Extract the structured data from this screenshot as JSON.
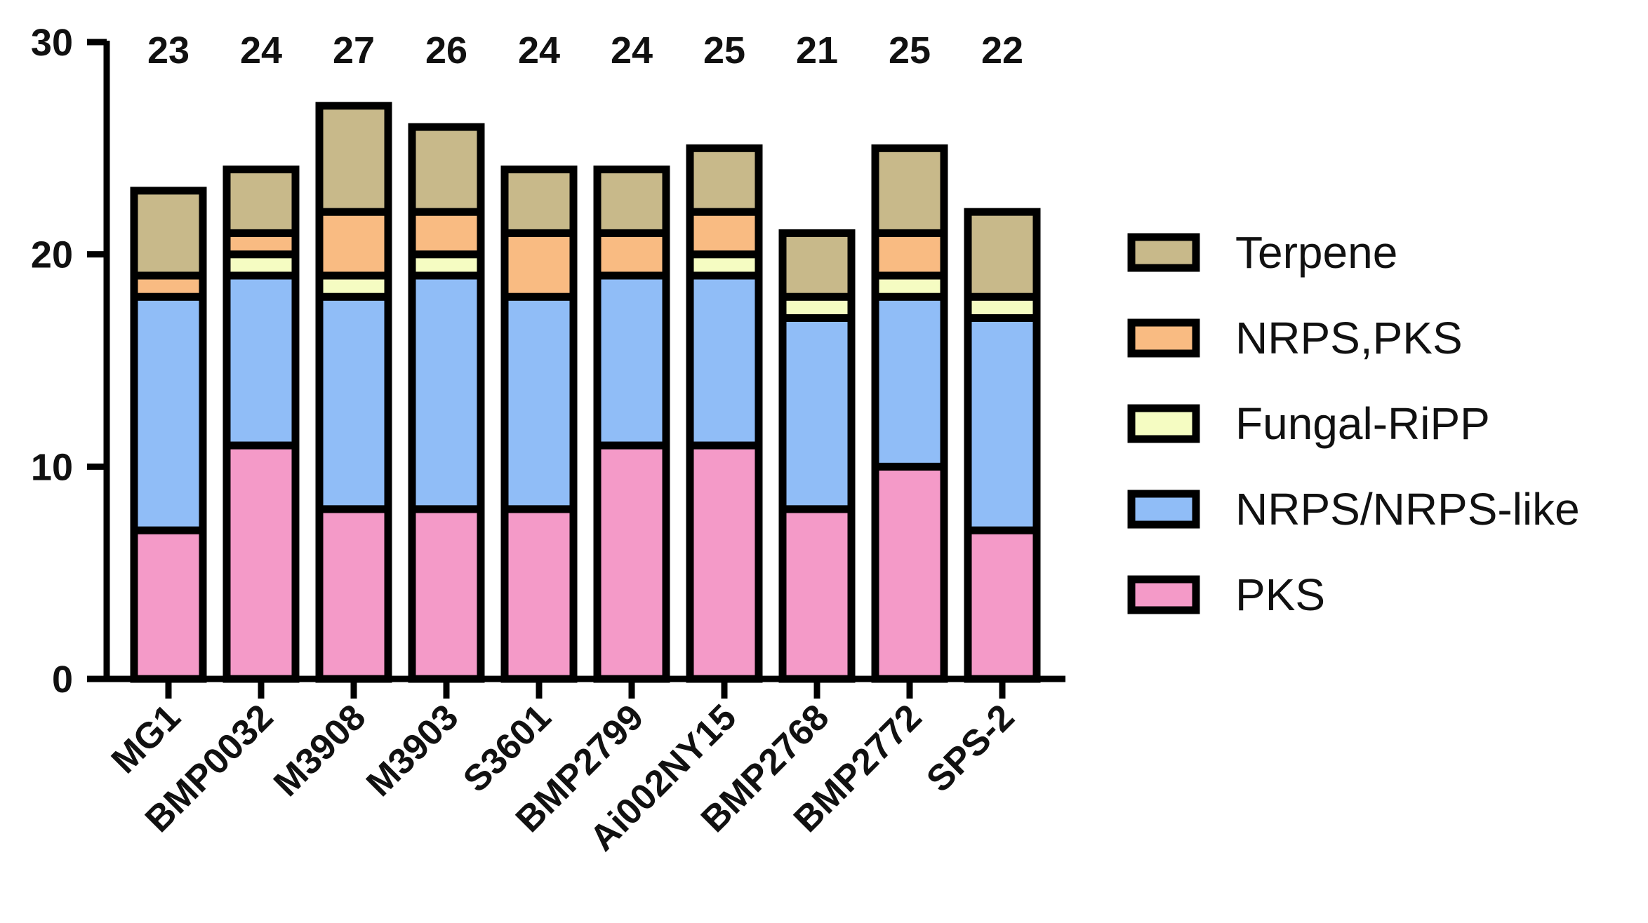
{
  "chart_data": {
    "type": "bar",
    "stacked": true,
    "categories": [
      "MG1",
      "BMP0032",
      "M3908",
      "M3903",
      "S3601",
      "BMP2799",
      "Ai002NY15",
      "BMP2768",
      "BMP2772",
      "SPS-2"
    ],
    "series": [
      {
        "name": "PKS",
        "color": "#f49ac8",
        "values": [
          7,
          11,
          8,
          8,
          8,
          11,
          11,
          8,
          10,
          7
        ]
      },
      {
        "name": "NRPS/NRPS-like",
        "color": "#90bdf7",
        "values": [
          11,
          8,
          10,
          11,
          10,
          8,
          8,
          9,
          8,
          10
        ]
      },
      {
        "name": "Fungal-RiPP",
        "color": "#f5fcc2",
        "values": [
          0,
          1,
          1,
          1,
          0,
          0,
          1,
          1,
          1,
          1
        ]
      },
      {
        "name": "NRPS,PKS",
        "color": "#f9bb82",
        "values": [
          1,
          1,
          3,
          2,
          3,
          2,
          2,
          0,
          2,
          0
        ]
      },
      {
        "name": "Terpene",
        "color": "#c8b98a",
        "values": [
          4,
          3,
          5,
          4,
          3,
          3,
          3,
          3,
          4,
          4
        ]
      }
    ],
    "totals": [
      "23",
      "24",
      "27",
      "26",
      "24",
      "24",
      "25",
      "21",
      "25",
      "22"
    ],
    "legend_order": [
      "Terpene",
      "NRPS,PKS",
      "Fungal-RiPP",
      "NRPS/NRPS-like",
      "PKS"
    ],
    "ylim": [
      0,
      30
    ],
    "yticks": [
      "0",
      "10",
      "20",
      "30"
    ],
    "title": "",
    "xlabel": "",
    "ylabel": "",
    "legend_position": "right",
    "grid": false
  }
}
